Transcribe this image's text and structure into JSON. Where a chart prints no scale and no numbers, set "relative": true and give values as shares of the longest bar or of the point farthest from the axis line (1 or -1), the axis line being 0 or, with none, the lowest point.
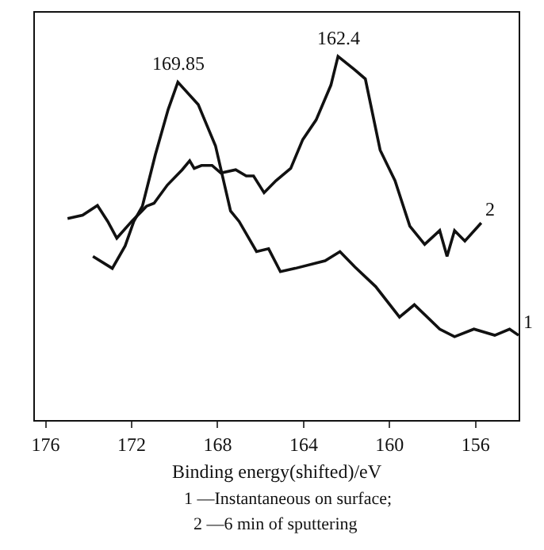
{
  "chart_data": {
    "type": "line",
    "relative": true,
    "xlabel": "Binding energy(shifted)/eV",
    "xlim": [
      176.5,
      154
    ],
    "xticks": [
      176,
      172,
      168,
      164,
      160,
      156
    ],
    "grid": false,
    "legend": false,
    "marker": "none",
    "line_style": "solid",
    "annotations": [
      {
        "text": "169.85",
        "x": 169.85,
        "y": 0.929
      },
      {
        "text": "162.4",
        "x": 162.4,
        "y": 1.0
      },
      "1 —Instantaneous on surface;",
      "2 —6 min of sputtering"
    ],
    "series": [
      {
        "name": "1",
        "color": "#111111",
        "x": [
          173.8,
          172.9,
          172.3,
          171.9,
          171.5,
          170.9,
          170.3,
          169.85,
          168.9,
          168.1,
          167.4,
          167.0,
          166.19,
          165.63,
          165.08,
          164.39,
          163.0,
          162.31,
          161.62,
          160.65,
          159.54,
          158.85,
          157.67,
          156.98,
          156.08,
          155.11,
          154.42,
          154.0
        ],
        "values": [
          0.45,
          0.417,
          0.479,
          0.546,
          0.588,
          0.729,
          0.854,
          0.929,
          0.867,
          0.754,
          0.575,
          0.546,
          0.463,
          0.471,
          0.408,
          0.417,
          0.438,
          0.463,
          0.421,
          0.367,
          0.283,
          0.317,
          0.25,
          0.229,
          0.25,
          0.233,
          0.25,
          0.233
        ]
      },
      {
        "name": "2",
        "color": "#111111",
        "x": [
          174.98,
          174.28,
          173.59,
          173.11,
          172.69,
          172.0,
          171.52,
          171.31,
          170.96,
          170.34,
          169.65,
          169.3,
          169.09,
          168.75,
          168.26,
          167.85,
          167.16,
          166.67,
          166.33,
          165.84,
          165.29,
          164.6,
          164.04,
          163.42,
          162.73,
          162.4,
          161.62,
          161.13,
          160.44,
          159.75,
          159.06,
          158.37,
          157.67,
          157.33,
          156.98,
          156.5,
          155.74
        ],
        "values": [
          0.554,
          0.563,
          0.59,
          0.546,
          0.5,
          0.546,
          0.575,
          0.588,
          0.596,
          0.646,
          0.688,
          0.713,
          0.692,
          0.7,
          0.7,
          0.679,
          0.688,
          0.671,
          0.671,
          0.625,
          0.658,
          0.692,
          0.771,
          0.825,
          0.921,
          1.0,
          0.963,
          0.938,
          0.742,
          0.658,
          0.533,
          0.483,
          0.521,
          0.45,
          0.521,
          0.492,
          0.542
        ]
      }
    ]
  }
}
